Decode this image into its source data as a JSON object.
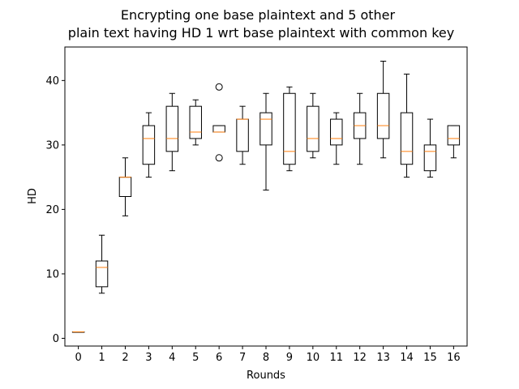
{
  "chart_data": {
    "type": "box",
    "title_lines": [
      "Encrypting one base plaintext and 5 other",
      "plain text having HD 1 wrt base plaintext with common key"
    ],
    "xlabel": "Rounds",
    "ylabel": "HD",
    "ylim": [
      -1.2,
      45.2
    ],
    "yticks": [
      0,
      10,
      20,
      30,
      40
    ],
    "categories": [
      "0",
      "1",
      "2",
      "3",
      "4",
      "5",
      "6",
      "7",
      "8",
      "9",
      "10",
      "11",
      "12",
      "13",
      "14",
      "15",
      "16"
    ],
    "boxes": [
      {
        "whislo": 1,
        "q1": 1,
        "med": 1,
        "q3": 1,
        "whishi": 1,
        "fliers": []
      },
      {
        "whislo": 7,
        "q1": 8,
        "med": 11,
        "q3": 12,
        "whishi": 16,
        "fliers": []
      },
      {
        "whislo": 19,
        "q1": 22,
        "med": 25,
        "q3": 25,
        "whishi": 28,
        "fliers": []
      },
      {
        "whislo": 25,
        "q1": 27,
        "med": 31,
        "q3": 33,
        "whishi": 35,
        "fliers": []
      },
      {
        "whislo": 26,
        "q1": 29,
        "med": 31,
        "q3": 36,
        "whishi": 38,
        "fliers": []
      },
      {
        "whislo": 30,
        "q1": 31,
        "med": 32,
        "q3": 36,
        "whishi": 37,
        "fliers": []
      },
      {
        "whislo": 32,
        "q1": 32,
        "med": 32,
        "q3": 33,
        "whishi": 33,
        "fliers": [
          39,
          28
        ]
      },
      {
        "whislo": 27,
        "q1": 29,
        "med": 34,
        "q3": 34,
        "whishi": 36,
        "fliers": []
      },
      {
        "whislo": 23,
        "q1": 30,
        "med": 34,
        "q3": 35,
        "whishi": 38,
        "fliers": []
      },
      {
        "whislo": 26,
        "q1": 27,
        "med": 29,
        "q3": 38,
        "whishi": 39,
        "fliers": []
      },
      {
        "whislo": 28,
        "q1": 29,
        "med": 31,
        "q3": 36,
        "whishi": 38,
        "fliers": []
      },
      {
        "whislo": 27,
        "q1": 30,
        "med": 31,
        "q3": 34,
        "whishi": 35,
        "fliers": []
      },
      {
        "whislo": 27,
        "q1": 31,
        "med": 33,
        "q3": 35,
        "whishi": 38,
        "fliers": []
      },
      {
        "whislo": 28,
        "q1": 31,
        "med": 33,
        "q3": 38,
        "whishi": 43,
        "fliers": []
      },
      {
        "whislo": 25,
        "q1": 27,
        "med": 29,
        "q3": 35,
        "whishi": 41,
        "fliers": []
      },
      {
        "whislo": 25,
        "q1": 26,
        "med": 29,
        "q3": 30,
        "whishi": 34,
        "fliers": []
      },
      {
        "whislo": 28,
        "q1": 30,
        "med": 31,
        "q3": 33,
        "whishi": 33,
        "fliers": []
      }
    ],
    "colors": {
      "box": "#000000",
      "median": "#ff7f0e",
      "whisker": "#000000",
      "flier": "#000000"
    },
    "grid": false,
    "legend": "none"
  }
}
